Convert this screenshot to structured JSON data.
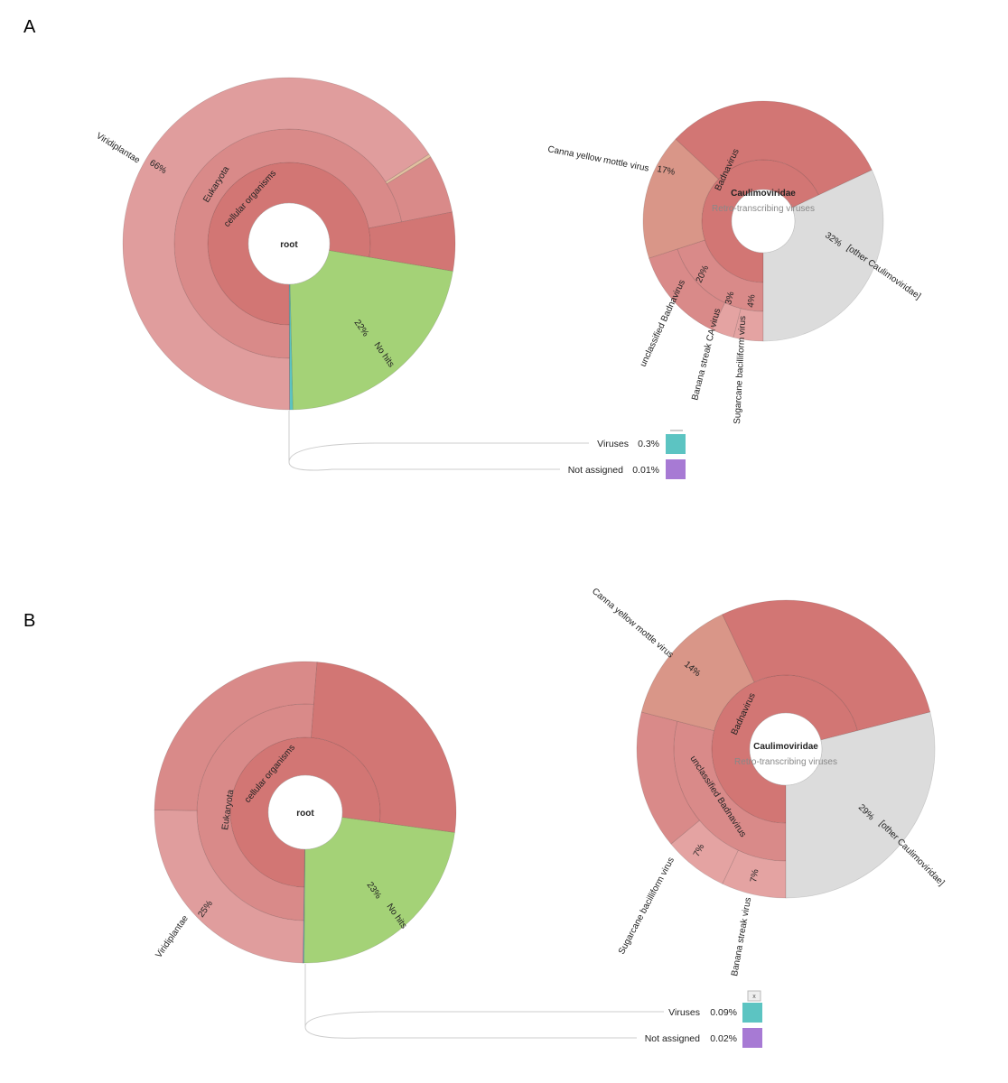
{
  "panels": [
    {
      "letter": "A",
      "overview": {
        "type": "sunburst",
        "root": "root",
        "labels": {
          "cellular": "cellular organisms",
          "eukaryota": "Eukaryota",
          "viridiplantae": "Viridiplantae",
          "viridiplantae_pct": "66%",
          "nohits": "No hits",
          "nohits_pct": "22%"
        },
        "nodes": [
          {
            "name": "No hits",
            "percent": 22,
            "color": "#a4d277"
          },
          {
            "name": "Viruses",
            "percent": 0.3,
            "color": "#5cc4c2"
          },
          {
            "name": "Not assigned",
            "percent": 0.01,
            "color": "#a77ad4"
          },
          {
            "name": "cellular organisms",
            "percent": 77.69,
            "color": "#d27674",
            "children": [
              {
                "name": "Eukaryota",
                "percent": 72,
                "color": "#d98a89",
                "children": [
                  {
                    "name": "Viridiplantae",
                    "percent": 66,
                    "color": "#e09d9d"
                  },
                  {
                    "name": "",
                    "percent": 0.3,
                    "color": "#e2c0a0"
                  }
                ]
              }
            ]
          }
        ],
        "legend": [
          {
            "name": "Viruses",
            "value": "0.3%",
            "color": "#5cc4c2"
          },
          {
            "name": "Not assigned",
            "value": "0.01%",
            "color": "#a77ad4"
          }
        ]
      },
      "detail": {
        "type": "sunburst",
        "root": "Caulimoviridae",
        "parent": "Retro-transcribing viruses",
        "labels": {
          "badnavirus": "Badnavirus",
          "canna": "Canna yellow mottle virus",
          "canna_pct": "17%",
          "unclassified": "unclassified Badnavirus",
          "unclassified_pct": "20%",
          "banana": "Banana streak CA virus",
          "banana_pct": "3%",
          "sugarcane": "Sugarcane bacilliform virus",
          "sugarcane_pct": "4%",
          "other": "[other Caulimoviridae]",
          "other_pct": "32%"
        },
        "nodes": [
          {
            "name": "Badnavirus",
            "percent": 68,
            "color": "#d27674",
            "children": [
              {
                "name": "unclassified Badnavirus",
                "percent": 20,
                "color": "#d98a89",
                "children": [
                  {
                    "name": "Sugarcane bacilliform virus",
                    "percent": 4,
                    "color": "#e4a3a2"
                  },
                  {
                    "name": "Banana streak CA virus",
                    "percent": 3,
                    "color": "#e4a3a2"
                  }
                ]
              },
              {
                "name": "Canna yellow mottle virus",
                "percent": 17,
                "color": "#d99688"
              }
            ]
          },
          {
            "name": "[other Caulimoviridae]",
            "percent": 32,
            "color": "#dcdcdc"
          }
        ]
      }
    },
    {
      "letter": "B",
      "overview": {
        "type": "sunburst",
        "root": "root",
        "labels": {
          "cellular": "cellular organisms",
          "eukaryota": "Eukaryota",
          "viridiplantae": "Viridiplantae",
          "viridiplantae_pct": "25%",
          "nohits": "No hits",
          "nohits_pct": "23%"
        },
        "nodes": [
          {
            "name": "No hits",
            "percent": 23,
            "color": "#a4d277"
          },
          {
            "name": "Viruses",
            "percent": 0.09,
            "color": "#5cc4c2"
          },
          {
            "name": "Not assigned",
            "percent": 0.02,
            "color": "#a77ad4"
          },
          {
            "name": "cellular organisms",
            "percent": 76.89,
            "color": "#d27674",
            "children": [
              {
                "name": "Eukaryota",
                "percent": 51,
                "color": "#d98a89",
                "children": [
                  {
                    "name": "Viridiplantae",
                    "percent": 25,
                    "color": "#e09d9d"
                  }
                ]
              }
            ]
          }
        ],
        "legend": [
          {
            "name": "Viruses",
            "value": "0.09%",
            "color": "#5cc4c2"
          },
          {
            "name": "Not assigned",
            "value": "0.02%",
            "color": "#a77ad4"
          }
        ],
        "close_label": "x"
      },
      "detail": {
        "type": "sunburst",
        "root": "Caulimoviridae",
        "parent": "Retro-transcribing viruses",
        "labels": {
          "badnavirus": "Badnavirus",
          "canna": "Canna yellow mottle virus",
          "canna_pct": "14%",
          "unclassified": "unclassified Badnavirus",
          "banana": "Banana streak virus",
          "banana_pct": "7%",
          "sugarcane": "Sugarcane bacilliform virus",
          "sugarcane_pct": "7%",
          "other": "[other Caulimoviridae]",
          "other_pct": "29%"
        },
        "nodes": [
          {
            "name": "Badnavirus",
            "percent": 71,
            "color": "#d27674",
            "children": [
              {
                "name": "unclassified Badnavirus",
                "percent": 29,
                "color": "#d98a89",
                "children": [
                  {
                    "name": "Banana streak virus",
                    "percent": 7,
                    "color": "#e4a3a2"
                  },
                  {
                    "name": "Sugarcane bacilliform virus",
                    "percent": 7,
                    "color": "#e4a3a2"
                  }
                ]
              },
              {
                "name": "Canna yellow mottle virus",
                "percent": 14,
                "color": "#d99688"
              }
            ]
          },
          {
            "name": "[other Caulimoviridae]",
            "percent": 29,
            "color": "#dcdcdc"
          }
        ]
      }
    }
  ]
}
